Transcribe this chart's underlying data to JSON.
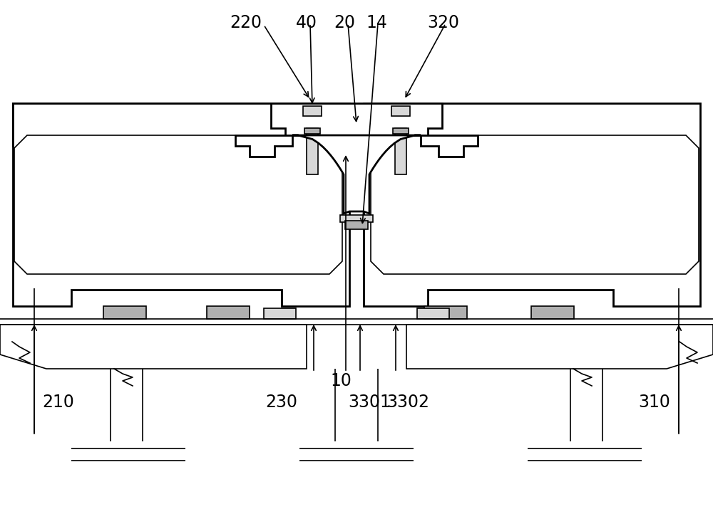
{
  "bg_color": "#ffffff",
  "line_color": "#000000",
  "gray_fill": "#b0b0b0",
  "light_gray": "#d8d8d8",
  "lw_main": 2.0,
  "lw_thin": 1.2,
  "lw_thick": 2.8
}
